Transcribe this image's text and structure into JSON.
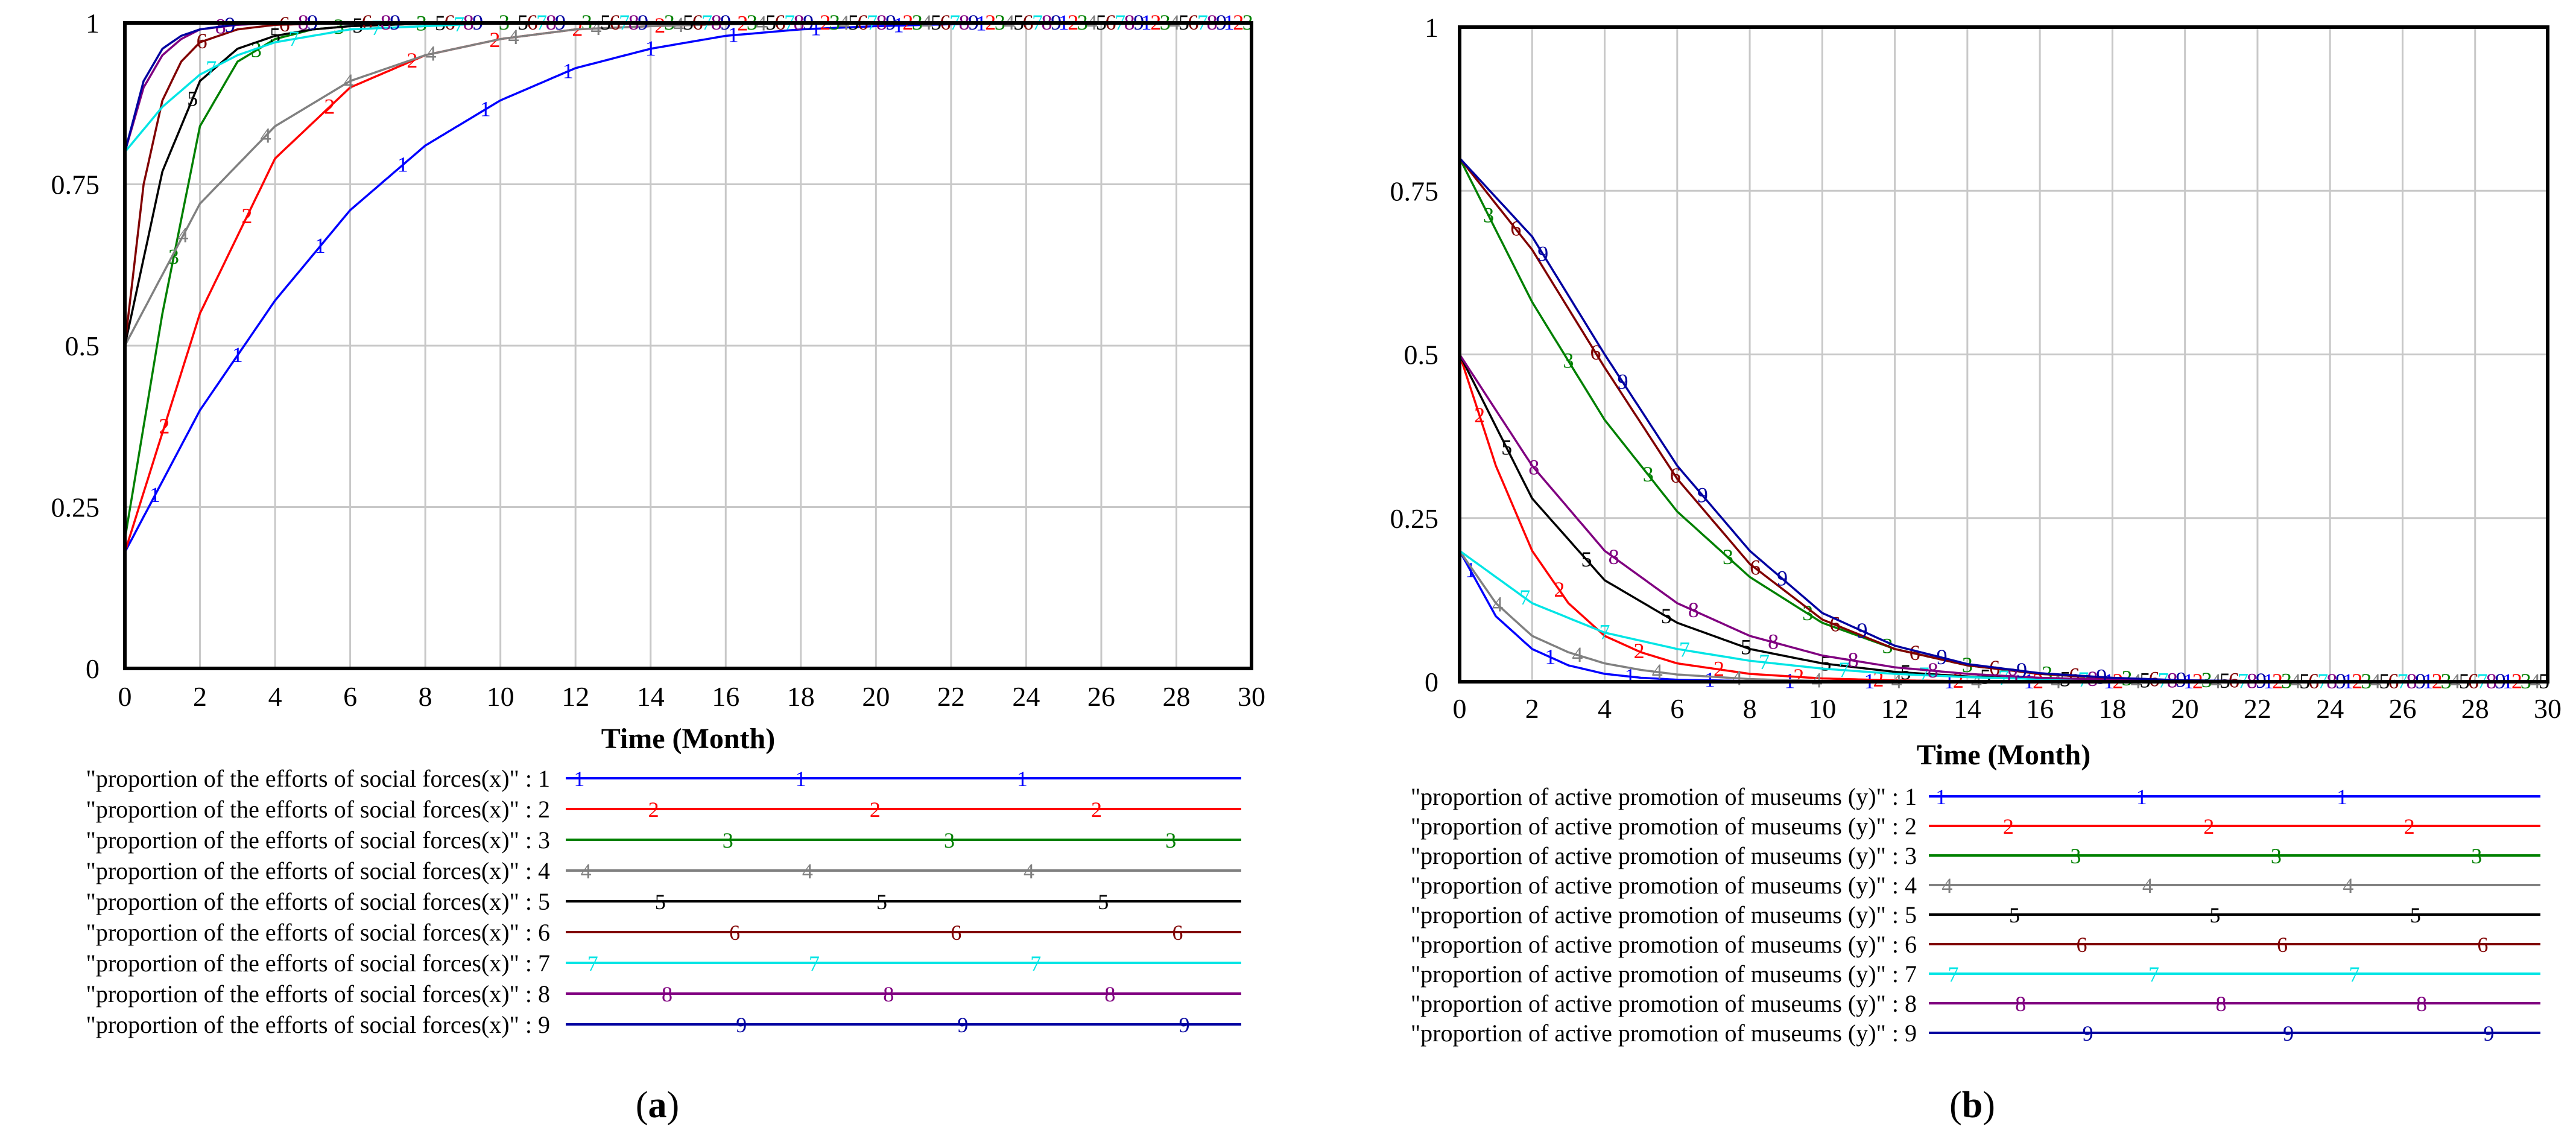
{
  "chart_data": [
    {
      "type": "line",
      "panel_label": "(a)",
      "panel_letter": "a",
      "title": "",
      "xlabel": "Time (Month)",
      "ylabel": "",
      "xlim": [
        0,
        30
      ],
      "ylim": [
        0,
        1
      ],
      "xticks": [
        "0",
        "2",
        "4",
        "6",
        "8",
        "10",
        "12",
        "14",
        "16",
        "18",
        "20",
        "22",
        "24",
        "26",
        "28",
        "30"
      ],
      "yticks": [
        "0",
        "0.25",
        "0.5",
        "0.75",
        "1"
      ],
      "grid": true,
      "legend_position": "bottom",
      "series": [
        {
          "name": "\"proportion of the efforts of social forces(x)\" : 1",
          "marker": "1",
          "color": "#0000ff",
          "x": [
            0,
            2,
            4,
            6,
            8,
            10,
            12,
            14,
            16,
            18,
            20,
            22,
            24,
            26,
            28,
            30
          ],
          "y": [
            0.18,
            0.4,
            0.57,
            0.71,
            0.81,
            0.88,
            0.93,
            0.96,
            0.98,
            0.99,
            0.995,
            0.998,
            1,
            1,
            1,
            1
          ]
        },
        {
          "name": "\"proportion of the efforts of social forces(x)\" : 2",
          "marker": "2",
          "color": "#ff0000",
          "x": [
            0,
            2,
            4,
            6,
            8,
            10,
            12,
            14,
            16,
            18,
            20,
            22,
            24,
            26,
            28,
            30
          ],
          "y": [
            0.18,
            0.55,
            0.79,
            0.9,
            0.95,
            0.975,
            0.99,
            0.995,
            0.998,
            1,
            1,
            1,
            1,
            1,
            1,
            1
          ]
        },
        {
          "name": "\"proportion of the efforts of social forces(x)\" : 3",
          "marker": "3",
          "color": "#008000",
          "x": [
            0,
            1,
            2,
            3,
            4,
            5,
            6,
            8,
            10,
            12,
            16,
            20,
            24,
            30
          ],
          "y": [
            0.2,
            0.55,
            0.84,
            0.94,
            0.975,
            0.99,
            0.995,
            0.999,
            1,
            1,
            1,
            1,
            1,
            1
          ]
        },
        {
          "name": "\"proportion of the efforts of social forces(x)\" : 4",
          "marker": "4",
          "color": "#808080",
          "x": [
            0,
            2,
            4,
            6,
            8,
            10,
            12,
            14,
            16,
            20,
            24,
            30
          ],
          "y": [
            0.5,
            0.72,
            0.84,
            0.91,
            0.95,
            0.975,
            0.99,
            0.995,
            0.998,
            1,
            1,
            1
          ]
        },
        {
          "name": "\"proportion of the efforts of social forces(x)\" : 5",
          "marker": "5",
          "color": "#000000",
          "x": [
            0,
            1,
            2,
            3,
            4,
            5,
            6,
            8,
            10,
            14,
            20,
            30
          ],
          "y": [
            0.5,
            0.77,
            0.91,
            0.96,
            0.98,
            0.99,
            0.995,
            0.999,
            1,
            1,
            1,
            1
          ]
        },
        {
          "name": "\"proportion of the efforts of social forces(x)\" : 6",
          "marker": "6",
          "color": "#800000",
          "x": [
            0,
            0.5,
            1,
            1.5,
            2,
            3,
            4,
            6,
            8,
            12,
            20,
            30
          ],
          "y": [
            0.5,
            0.75,
            0.88,
            0.94,
            0.97,
            0.99,
            0.997,
            1,
            1,
            1,
            1,
            1
          ]
        },
        {
          "name": "\"proportion of the efforts of social forces(x)\" : 7",
          "marker": "7",
          "color": "#00e5e5",
          "x": [
            0,
            1,
            2,
            3,
            4,
            5,
            6,
            8,
            10,
            12,
            16,
            20,
            30
          ],
          "y": [
            0.8,
            0.87,
            0.92,
            0.95,
            0.97,
            0.98,
            0.99,
            0.995,
            1,
            1,
            1,
            1,
            1
          ]
        },
        {
          "name": "\"proportion of the efforts of social forces(x)\" : 8",
          "marker": "8",
          "color": "#800080",
          "x": [
            0,
            0.5,
            1,
            1.5,
            2,
            3,
            4,
            6,
            8,
            12,
            20,
            30
          ],
          "y": [
            0.8,
            0.9,
            0.95,
            0.975,
            0.99,
            0.997,
            1,
            1,
            1,
            1,
            1,
            1
          ]
        },
        {
          "name": "\"proportion of the efforts of social forces(x)\" : 9",
          "marker": "9",
          "color": "#0000a0",
          "x": [
            0,
            0.5,
            1,
            1.5,
            2,
            3,
            4,
            6,
            8,
            12,
            20,
            30
          ],
          "y": [
            0.8,
            0.91,
            0.96,
            0.98,
            0.99,
            0.998,
            1,
            1,
            1,
            1,
            1,
            1
          ]
        }
      ]
    },
    {
      "type": "line",
      "panel_label": "(b)",
      "panel_letter": "b",
      "title": "",
      "xlabel": "Time (Month)",
      "ylabel": "",
      "xlim": [
        0,
        30
      ],
      "ylim": [
        0,
        1
      ],
      "xticks": [
        "0",
        "2",
        "4",
        "6",
        "8",
        "10",
        "12",
        "14",
        "16",
        "18",
        "20",
        "22",
        "24",
        "26",
        "28",
        "30"
      ],
      "yticks": [
        "0",
        "0.25",
        "0.5",
        "0.75",
        "1"
      ],
      "grid": true,
      "legend_position": "bottom",
      "series": [
        {
          "name": "\"proportion of active promotion of museums (y)\" : 1",
          "marker": "1",
          "color": "#0000ff",
          "x": [
            0,
            1,
            2,
            3,
            4,
            5,
            6,
            8,
            10,
            12,
            16,
            20,
            30
          ],
          "y": [
            0.2,
            0.1,
            0.05,
            0.025,
            0.012,
            0.006,
            0.003,
            0.001,
            0,
            0,
            0,
            0,
            0
          ]
        },
        {
          "name": "\"proportion of active promotion of museums (y)\" : 2",
          "marker": "2",
          "color": "#ff0000",
          "x": [
            0,
            1,
            2,
            3,
            4,
            5,
            6,
            8,
            10,
            12,
            14,
            16,
            20,
            30
          ],
          "y": [
            0.5,
            0.33,
            0.2,
            0.12,
            0.07,
            0.045,
            0.028,
            0.012,
            0.005,
            0.002,
            0.001,
            0,
            0,
            0
          ]
        },
        {
          "name": "\"proportion of active promotion of museums (y)\" : 3",
          "marker": "3",
          "color": "#008000",
          "x": [
            0,
            2,
            4,
            6,
            8,
            10,
            12,
            14,
            16,
            18,
            20,
            24,
            30
          ],
          "y": [
            0.8,
            0.58,
            0.4,
            0.26,
            0.16,
            0.09,
            0.05,
            0.025,
            0.012,
            0.005,
            0.002,
            0,
            0
          ]
        },
        {
          "name": "\"proportion of active promotion of museums (y)\" : 4",
          "marker": "4",
          "color": "#808080",
          "x": [
            0,
            1,
            2,
            3,
            4,
            5,
            6,
            8,
            10,
            12,
            16,
            20,
            30
          ],
          "y": [
            0.2,
            0.12,
            0.07,
            0.045,
            0.028,
            0.018,
            0.011,
            0.004,
            0.001,
            0,
            0,
            0,
            0
          ]
        },
        {
          "name": "\"proportion of active promotion of museums (y)\" : 5",
          "marker": "5",
          "color": "#000000",
          "x": [
            0,
            2,
            4,
            6,
            8,
            10,
            12,
            14,
            16,
            18,
            20,
            24,
            30
          ],
          "y": [
            0.5,
            0.28,
            0.155,
            0.09,
            0.05,
            0.028,
            0.015,
            0.008,
            0.004,
            0.002,
            0.001,
            0,
            0
          ]
        },
        {
          "name": "\"proportion of active promotion of museums (y)\" : 6",
          "marker": "6",
          "color": "#800000",
          "x": [
            0,
            2,
            4,
            6,
            8,
            10,
            12,
            14,
            16,
            18,
            20,
            24,
            30
          ],
          "y": [
            0.8,
            0.66,
            0.48,
            0.31,
            0.18,
            0.095,
            0.05,
            0.025,
            0.012,
            0.005,
            0.002,
            0,
            0
          ]
        },
        {
          "name": "\"proportion of active promotion of museums (y)\" : 7",
          "marker": "7",
          "color": "#00e5e5",
          "x": [
            0,
            2,
            4,
            6,
            8,
            10,
            12,
            14,
            16,
            18,
            20,
            24,
            30
          ],
          "y": [
            0.2,
            0.12,
            0.075,
            0.05,
            0.032,
            0.02,
            0.012,
            0.007,
            0.004,
            0.002,
            0.001,
            0,
            0
          ]
        },
        {
          "name": "\"proportion of active promotion of museums (y)\" : 8",
          "marker": "8",
          "color": "#800080",
          "x": [
            0,
            2,
            4,
            6,
            8,
            10,
            12,
            14,
            16,
            18,
            20,
            24,
            30
          ],
          "y": [
            0.5,
            0.33,
            0.2,
            0.12,
            0.07,
            0.04,
            0.022,
            0.012,
            0.006,
            0.003,
            0.001,
            0,
            0
          ]
        },
        {
          "name": "\"proportion of active promotion of museums (y)\" : 9",
          "marker": "9",
          "color": "#0000a0",
          "x": [
            0,
            2,
            4,
            6,
            8,
            10,
            12,
            14,
            16,
            18,
            20,
            24,
            30
          ],
          "y": [
            0.8,
            0.68,
            0.5,
            0.33,
            0.2,
            0.105,
            0.055,
            0.027,
            0.013,
            0.006,
            0.002,
            0,
            0
          ]
        }
      ]
    }
  ]
}
